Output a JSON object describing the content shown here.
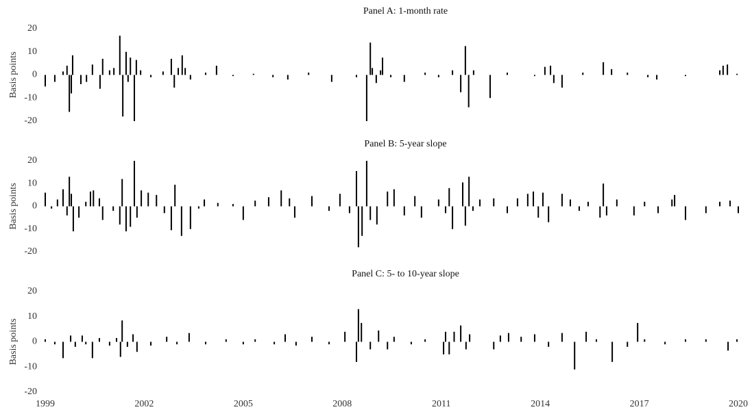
{
  "chart_data": [
    {
      "type": "bar",
      "title": "Panel A: 1-month rate",
      "ylabel": "Basis points",
      "color": "#000000",
      "xlim": [
        1999,
        2020
      ],
      "ylim": [
        -20,
        20
      ],
      "yticks": [
        -20,
        -10,
        0,
        10,
        20
      ],
      "x": [
        1999.0,
        1999.29,
        1999.54,
        1999.66,
        1999.73,
        1999.79,
        1999.83,
        2000.08,
        2000.25,
        2000.43,
        2000.66,
        2000.74,
        2000.95,
        2001.08,
        2001.26,
        2001.35,
        2001.45,
        2001.51,
        2001.58,
        2001.7,
        2001.76,
        2001.89,
        2002.2,
        2002.57,
        2002.82,
        2002.91,
        2003.03,
        2003.15,
        2003.24,
        2003.4,
        2003.86,
        2004.19,
        2004.69,
        2005.31,
        2005.9,
        2006.35,
        2006.98,
        2007.68,
        2008.43,
        2008.74,
        2008.85,
        2008.91,
        2009.03,
        2009.16,
        2009.22,
        2009.47,
        2009.88,
        2010.51,
        2010.92,
        2011.34,
        2011.59,
        2011.73,
        2011.83,
        2011.98,
        2012.48,
        2013.0,
        2013.83,
        2014.14,
        2014.31,
        2014.41,
        2014.66,
        2015.29,
        2015.91,
        2016.16,
        2016.64,
        2017.26,
        2017.53,
        2018.4,
        2019.44,
        2019.54,
        2019.67,
        2019.96
      ],
      "values": [
        -5,
        -3,
        1.5,
        4,
        -16,
        -8,
        8.5,
        -4,
        -3,
        4.5,
        -6,
        7,
        2,
        3,
        17,
        -18,
        10,
        -3,
        7.5,
        -20,
        6.5,
        2,
        -1,
        1.5,
        7,
        -5.5,
        3,
        8.5,
        3,
        -2,
        1,
        4,
        -0.5,
        0.5,
        -1,
        -2,
        1,
        -3,
        -1,
        -20,
        14,
        3,
        -3.5,
        2,
        7.5,
        -1,
        -3,
        1,
        -1,
        2,
        -7.5,
        12.5,
        -14,
        2,
        -10,
        1,
        -0.5,
        3.5,
        4,
        -3.5,
        -5.5,
        1,
        5.5,
        2.5,
        1,
        -1,
        -2,
        -0.5,
        2,
        4,
        4.5,
        0.5
      ]
    },
    {
      "type": "bar",
      "title": "Panel B: 5-year slope",
      "ylabel": "Basis points",
      "color": "#000000",
      "xlim": [
        1999,
        2020
      ],
      "ylim": [
        -20,
        20
      ],
      "yticks": [
        -20,
        -10,
        0,
        10,
        20
      ],
      "x": [
        1999.0,
        1999.19,
        1999.37,
        1999.54,
        1999.66,
        1999.73,
        1999.79,
        1999.85,
        2000.02,
        2000.23,
        2000.37,
        2000.46,
        2000.64,
        2000.74,
        2001.06,
        2001.26,
        2001.33,
        2001.45,
        2001.58,
        2001.7,
        2001.78,
        2001.91,
        2002.12,
        2002.37,
        2002.61,
        2002.82,
        2002.93,
        2003.13,
        2003.4,
        2003.65,
        2003.82,
        2004.23,
        2004.69,
        2005.0,
        2005.36,
        2005.77,
        2006.15,
        2006.4,
        2006.56,
        2007.08,
        2007.6,
        2007.93,
        2008.22,
        2008.43,
        2008.49,
        2008.6,
        2008.74,
        2008.85,
        2009.05,
        2009.37,
        2009.57,
        2009.88,
        2010.2,
        2010.4,
        2010.92,
        2011.13,
        2011.24,
        2011.34,
        2011.65,
        2011.73,
        2011.84,
        2011.96,
        2012.17,
        2012.59,
        2013.0,
        2013.31,
        2013.62,
        2013.79,
        2013.94,
        2014.08,
        2014.25,
        2014.66,
        2014.91,
        2015.18,
        2015.45,
        2015.81,
        2015.91,
        2016.01,
        2016.32,
        2016.84,
        2017.16,
        2017.57,
        2017.99,
        2018.07,
        2018.4,
        2019.02,
        2019.44,
        2019.75,
        2020.0
      ],
      "values": [
        6,
        -1,
        3,
        7.5,
        -4,
        13,
        5.5,
        -11,
        -5,
        2,
        6.5,
        7,
        3.5,
        -6,
        -2,
        -8,
        12,
        -11,
        -9,
        20,
        -5,
        7,
        6,
        5,
        -3,
        -10.5,
        9.5,
        -13,
        -10,
        -1,
        3,
        1.5,
        1,
        -6,
        2.5,
        4,
        7,
        3.5,
        -5,
        4.5,
        -2,
        5.5,
        -3,
        15.5,
        -18,
        -13,
        20,
        -6,
        -8,
        6.5,
        7.5,
        -4,
        4.5,
        -5,
        3,
        -3,
        8,
        -10,
        10.5,
        -8.5,
        13,
        -2,
        3,
        3.5,
        -3,
        3.5,
        5.5,
        6.5,
        -5,
        6,
        -7,
        5.5,
        3,
        -2,
        2,
        -5,
        10,
        -4,
        3,
        -4,
        2,
        -3,
        3,
        5,
        -6,
        -3,
        2,
        2.5,
        -3
      ]
    },
    {
      "type": "bar",
      "title": "Panel C: 5- to 10-year slope",
      "ylabel": "Basis points",
      "color": "#000000",
      "xlim": [
        1999,
        2020
      ],
      "xticks": [
        1999,
        2002,
        2005,
        2008,
        2011,
        2014,
        2017,
        2020
      ],
      "ylim": [
        -20,
        20
      ],
      "yticks": [
        -20,
        -10,
        0,
        10,
        20
      ],
      "x": [
        1999.0,
        1999.29,
        1999.54,
        1999.77,
        1999.91,
        2000.12,
        2000.23,
        2000.43,
        2000.64,
        2000.95,
        2001.16,
        2001.28,
        2001.33,
        2001.49,
        2001.66,
        2001.78,
        2002.2,
        2002.68,
        2002.99,
        2003.36,
        2003.86,
        2004.48,
        2005.0,
        2005.36,
        2005.94,
        2006.27,
        2006.6,
        2007.08,
        2007.6,
        2008.08,
        2008.43,
        2008.49,
        2008.58,
        2008.85,
        2009.1,
        2009.37,
        2009.57,
        2010.09,
        2010.51,
        2011.07,
        2011.13,
        2011.24,
        2011.39,
        2011.59,
        2011.75,
        2011.86,
        2012.59,
        2012.79,
        2013.04,
        2013.42,
        2013.83,
        2014.25,
        2014.66,
        2015.04,
        2015.39,
        2015.7,
        2016.18,
        2016.64,
        2016.95,
        2017.16,
        2017.78,
        2018.4,
        2019.02,
        2019.69,
        2019.96
      ],
      "values": [
        1,
        -1,
        -6.5,
        2.5,
        -2,
        2.5,
        -1,
        -6.5,
        1.5,
        -1.5,
        1.5,
        -6,
        8.5,
        -2,
        3,
        -4,
        -1.5,
        2,
        -1,
        3.5,
        -1,
        1,
        -1,
        1,
        -1,
        3,
        -1.5,
        2,
        -1,
        4,
        -8,
        13,
        7.5,
        -3,
        4.5,
        -3,
        2,
        -1,
        1,
        -5,
        4,
        -5,
        4,
        6.5,
        -3,
        3,
        -3,
        2.5,
        3.5,
        2,
        3,
        -2,
        3.5,
        -11,
        4,
        1,
        -8,
        -2,
        7.5,
        1,
        -1,
        1,
        1,
        -3.5,
        1
      ]
    }
  ]
}
